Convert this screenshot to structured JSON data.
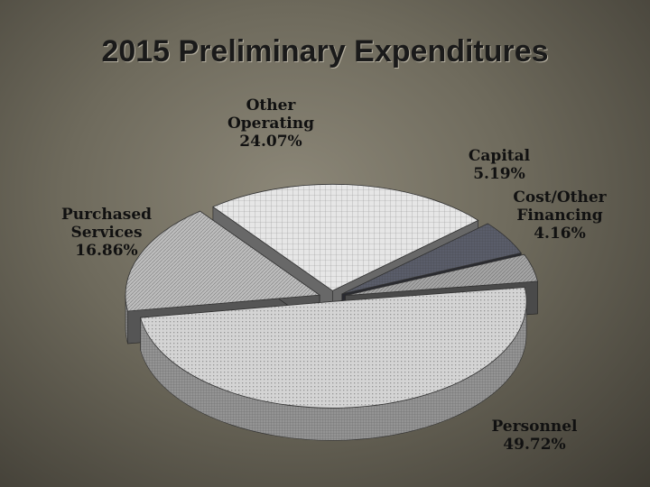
{
  "slide": {
    "title": "2015 Preliminary Expenditures"
  },
  "chart_data": {
    "type": "pie",
    "title": "2015 Preliminary Expenditures",
    "style": "3d-exploded",
    "legend": "none",
    "slices": [
      {
        "label_lines": [
          "Other",
          "Operating"
        ],
        "value_text": "24.07%",
        "value": 24.07,
        "color": "#e6e6e6"
      },
      {
        "label_lines": [
          "Capital"
        ],
        "value_text": "5.19%",
        "value": 5.19,
        "color": "#5a5d6a"
      },
      {
        "label_lines": [
          "Cost/Other",
          "Financing"
        ],
        "value_text": "4.16%",
        "value": 4.16,
        "color": "#a4a4a4"
      },
      {
        "label_lines": [
          "Personnel"
        ],
        "value_text": "49.72%",
        "value": 49.72,
        "color": "#d4d4d4"
      },
      {
        "label_lines": [
          "Purchased",
          "Services"
        ],
        "value_text": "16.86%",
        "value": 16.86,
        "color": "#bdbdbd"
      }
    ]
  }
}
